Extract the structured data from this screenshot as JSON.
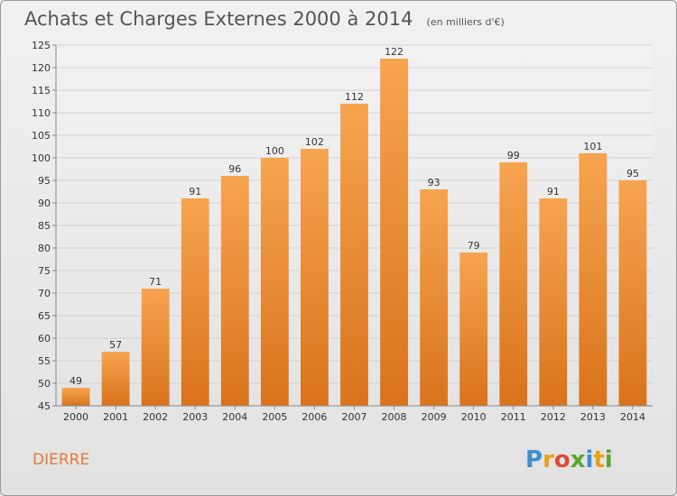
{
  "chart_data": {
    "type": "bar",
    "title": "Achats et Charges Externes 2000 à 2014",
    "unit_note": "(en milliers d'€)",
    "categories": [
      "2000",
      "2001",
      "2002",
      "2003",
      "2004",
      "2005",
      "2006",
      "2007",
      "2008",
      "2009",
      "2010",
      "2011",
      "2012",
      "2013",
      "2014"
    ],
    "values": [
      49,
      57,
      71,
      91,
      96,
      100,
      102,
      112,
      122,
      93,
      79,
      99,
      91,
      101,
      95
    ],
    "ylim": [
      45,
      125
    ],
    "yticks": [
      45,
      50,
      55,
      60,
      65,
      70,
      75,
      80,
      85,
      90,
      95,
      100,
      105,
      110,
      115,
      120,
      125
    ],
    "grid": true,
    "bar_color_top": "#f7a451",
    "bar_color_bottom": "#d9731c"
  },
  "commune": "DIERRE",
  "logo": {
    "letters": [
      "P",
      "r",
      "o",
      "x",
      "i",
      "t",
      "i"
    ],
    "colors": [
      "#3c8fd1",
      "#e8a019",
      "#d94c3a",
      "#5aa532",
      "#3c8fd1",
      "#e8a019",
      "#5aa532"
    ]
  }
}
